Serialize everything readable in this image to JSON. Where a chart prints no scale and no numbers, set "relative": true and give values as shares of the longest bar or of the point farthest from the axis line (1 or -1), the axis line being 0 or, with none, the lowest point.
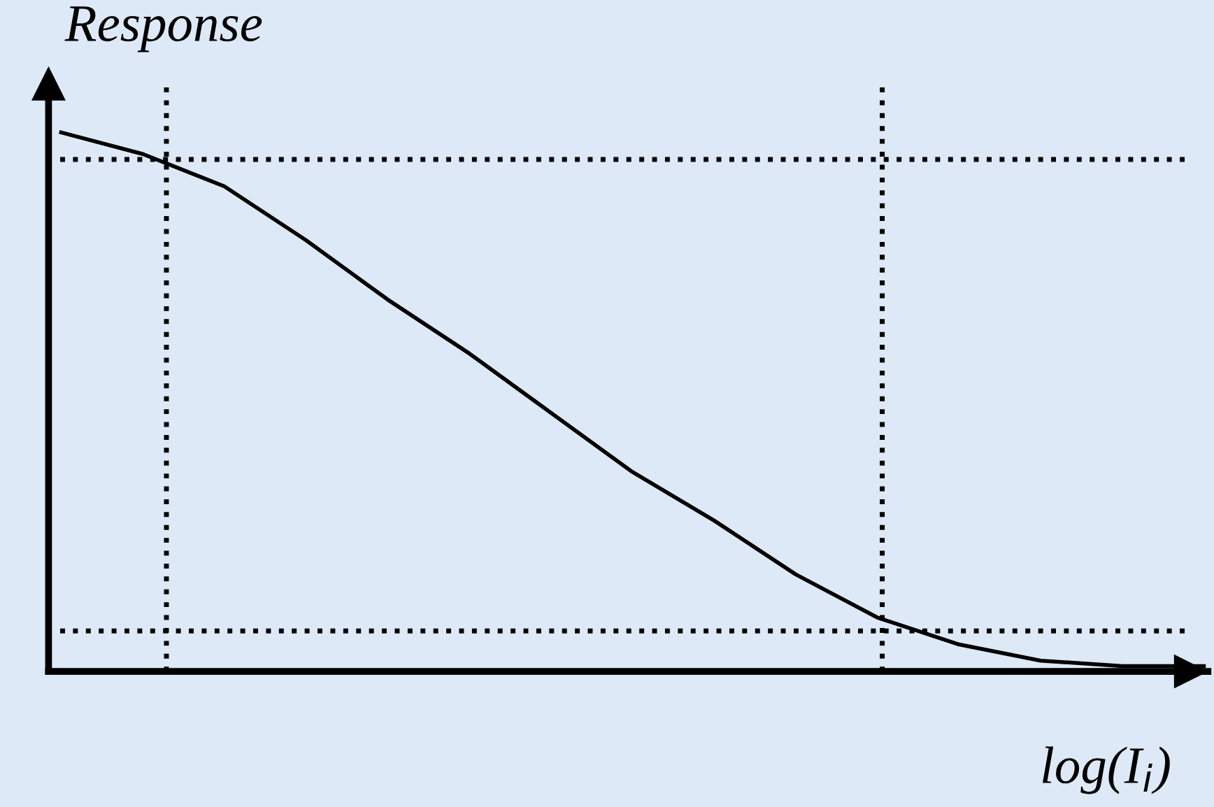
{
  "chart_data": {
    "type": "line",
    "relative": true,
    "xlabel": "log(I$_{i}$)",
    "ylabel": "Response",
    "categories": [
      null,
      null,
      null,
      null,
      null,
      null,
      null,
      null,
      null,
      null,
      null,
      null,
      null,
      null,
      null
    ],
    "series": [
      {
        "color": "#000000",
        "values": [
          1,
          0.96,
          0.9,
          0.8,
          0.69,
          0.59,
          0.48,
          0.37,
          0.28,
          0.18,
          0.1,
          0.05,
          0.02,
          0.01,
          0.01
        ]
      }
    ],
    "ref_lines": [
      {
        "axis": "y",
        "value": 0.95,
        "color": "#000000",
        "line_style": "dotted"
      },
      {
        "axis": "y",
        "value": 0.075,
        "color": "#000000",
        "line_style": "dotted"
      }
    ],
    "legend": false,
    "marker": "none",
    "line_style": "solid"
  }
}
